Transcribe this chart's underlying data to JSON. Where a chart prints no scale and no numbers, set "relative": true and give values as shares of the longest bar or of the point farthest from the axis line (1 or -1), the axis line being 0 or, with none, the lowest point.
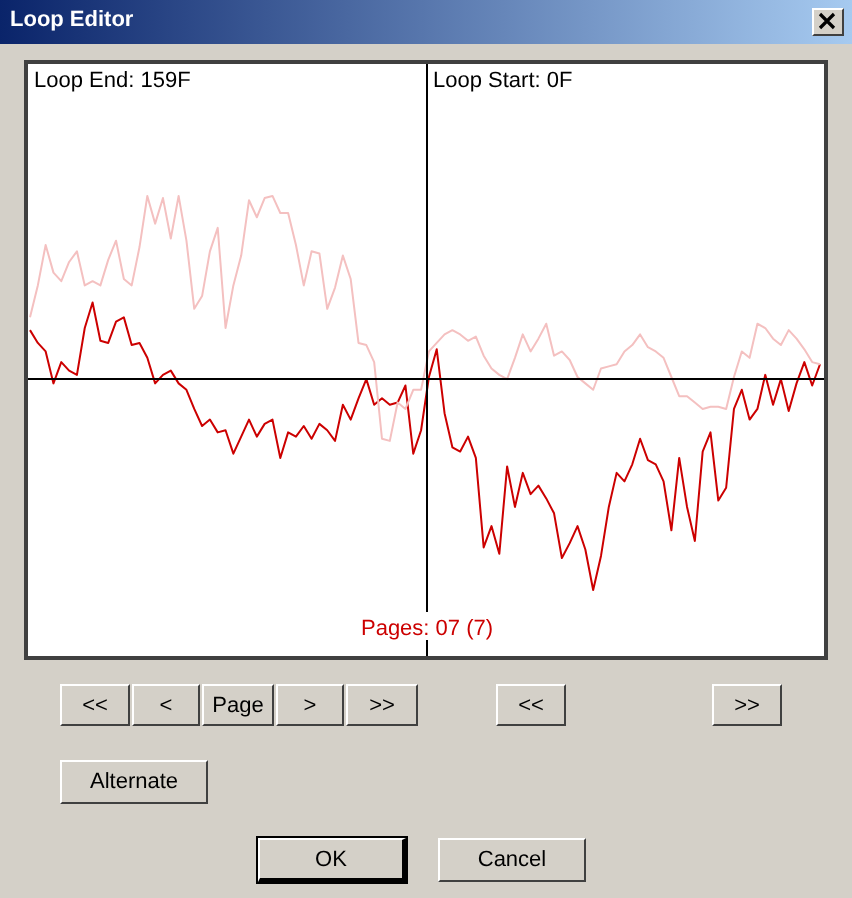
{
  "chart_data": {
    "type": "line",
    "title": "Loop Editor",
    "relative": true,
    "marker": "none",
    "line_style": "solid",
    "categories": [
      null,
      null,
      null,
      null,
      null,
      null,
      null,
      null,
      null,
      null,
      null,
      null,
      null,
      null,
      null,
      null,
      null,
      null,
      null,
      null,
      null,
      null,
      null,
      null,
      null,
      null,
      null,
      null,
      null,
      null,
      null,
      null,
      null,
      null,
      null,
      null,
      null,
      null,
      null,
      null,
      null,
      null,
      null,
      null,
      null,
      null,
      null,
      null,
      null,
      null,
      null,
      null,
      null,
      null,
      null,
      null,
      null,
      null,
      null,
      null,
      null,
      null,
      null,
      null,
      null,
      null,
      null,
      null,
      null,
      null,
      null,
      null,
      null,
      null,
      null,
      null,
      null,
      null,
      null,
      null,
      null,
      null,
      null,
      null,
      null,
      null,
      null,
      null,
      null,
      null,
      null,
      null,
      null,
      null,
      null,
      null,
      null,
      null,
      null,
      null,
      null,
      null
    ],
    "ref_lines": [
      {
        "axis": "x",
        "label": "Loop Start: 0F",
        "color": "#000000"
      }
    ],
    "annotations": [
      "Loop End: 159F",
      "Pages: 07 (7)",
      "<<",
      "<",
      "Page",
      ">",
      ">>",
      "<<",
      ">>",
      "Alternate",
      "OK",
      "Cancel"
    ],
    "series": [
      {
        "color": "#f4c0c0",
        "values": [
          0.28,
          0.43,
          0.62,
          0.49,
          0.45,
          0.54,
          0.59,
          0.43,
          0.45,
          0.43,
          0.55,
          0.64,
          0.46,
          0.43,
          0.61,
          0.85,
          0.72,
          0.84,
          0.65,
          0.85,
          0.64,
          0.32,
          0.38,
          0.59,
          0.7,
          0.23,
          0.43,
          0.57,
          0.83,
          0.75,
          0.84,
          0.85,
          0.77,
          0.77,
          0.62,
          0.43,
          0.59,
          0.58,
          0.32,
          0.42,
          0.57,
          0.46,
          0.16,
          0.15,
          0.07,
          -0.29,
          -0.3,
          -0.12,
          -0.15,
          -0.06,
          -0.06,
          0.12,
          0.16,
          0.2,
          0.22,
          0.2,
          0.17,
          0.19,
          0.1,
          0.04,
          0.01,
          -0.01,
          0.09,
          0.2,
          0.12,
          0.18,
          0.25,
          0.1,
          0.12,
          0.08,
          0,
          -0.03,
          -0.06,
          0.04,
          0.05,
          0.06,
          0.12,
          0.15,
          0.2,
          0.14,
          0.12,
          0.09,
          0,
          -0.09,
          -0.09,
          -0.12,
          -0.15,
          -0.14,
          -0.14,
          -0.15,
          0,
          0.12,
          0.09,
          0.25,
          0.23,
          0.18,
          0.15,
          0.22,
          0.18,
          0.13,
          0.07,
          0.06
        ]
      },
      {
        "color": "#cc0000",
        "values": [
          0.22,
          0.16,
          0.12,
          -0.03,
          0.07,
          0.03,
          0.01,
          0.23,
          0.35,
          0.17,
          0.16,
          0.26,
          0.28,
          0.15,
          0.16,
          0.09,
          -0.03,
          0.01,
          0.03,
          -0.03,
          -0.06,
          -0.15,
          -0.23,
          -0.2,
          -0.26,
          -0.25,
          -0.36,
          -0.28,
          -0.2,
          -0.28,
          -0.22,
          -0.2,
          -0.38,
          -0.26,
          -0.28,
          -0.23,
          -0.29,
          -0.22,
          -0.25,
          -0.3,
          -0.13,
          -0.2,
          -0.1,
          -0.01,
          -0.13,
          -0.1,
          -0.13,
          -0.12,
          -0.04,
          -0.36,
          -0.25,
          0,
          0.13,
          -0.17,
          -0.33,
          -0.35,
          -0.28,
          -0.38,
          -0.8,
          -0.7,
          -0.83,
          -0.42,
          -0.61,
          -0.45,
          -0.55,
          -0.51,
          -0.57,
          -0.64,
          -0.85,
          -0.78,
          -0.7,
          -0.81,
          -1,
          -0.84,
          -0.61,
          -0.45,
          -0.49,
          -0.41,
          -0.29,
          -0.39,
          -0.41,
          -0.49,
          -0.72,
          -0.38,
          -0.61,
          -0.77,
          -0.35,
          -0.26,
          -0.58,
          -0.52,
          -0.15,
          -0.06,
          -0.2,
          -0.15,
          0.01,
          -0.13,
          -0.01,
          -0.16,
          -0.03,
          0.07,
          -0.04,
          0.06
        ]
      }
    ]
  }
}
